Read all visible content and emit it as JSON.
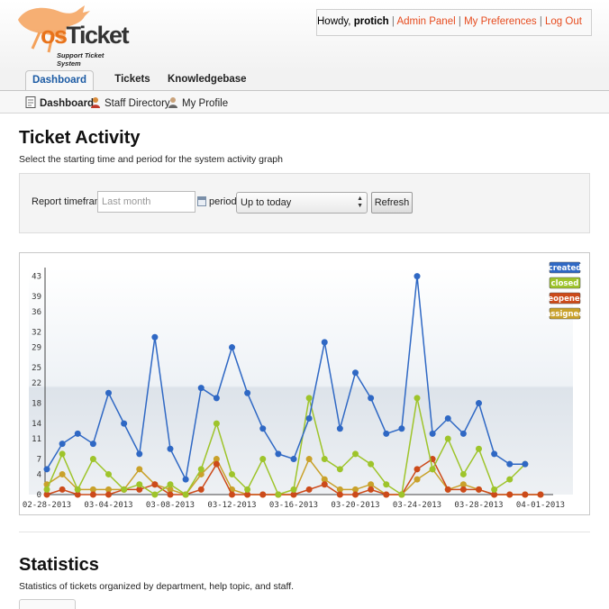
{
  "brand": {
    "logo_os": "os",
    "logo_ticket": "Ticket",
    "tagline": "Support Ticket System"
  },
  "user": {
    "greeting": "Howdy,",
    "name": "protich",
    "links": [
      "Admin Panel",
      "My Preferences",
      "Log Out"
    ],
    "separator": "|"
  },
  "nav": {
    "tabs": [
      "Dashboard",
      "Tickets",
      "Knowledgebase"
    ],
    "active": "Dashboard"
  },
  "subnav": {
    "items": [
      "Dashboard",
      "Staff Directory",
      "My Profile"
    ]
  },
  "page": {
    "title": "Ticket Activity",
    "description": "Select the starting time and period for the system activity graph"
  },
  "filter": {
    "timeframe_label": "Report timeframe:",
    "timeframe_placeholder": "Last month",
    "period_label": "period:",
    "period_value": "Up to today",
    "refresh_label": "Refresh"
  },
  "chart_data": {
    "type": "line",
    "x": [
      "02-28-2013",
      "03-01-2013",
      "03-02-2013",
      "03-03-2013",
      "03-04-2013",
      "03-05-2013",
      "03-06-2013",
      "03-07-2013",
      "03-08-2013",
      "03-09-2013",
      "03-10-2013",
      "03-11-2013",
      "03-12-2013",
      "03-13-2013",
      "03-14-2013",
      "03-15-2013",
      "03-16-2013",
      "03-17-2013",
      "03-18-2013",
      "03-19-2013",
      "03-20-2013",
      "03-21-2013",
      "03-22-2013",
      "03-23-2013",
      "03-24-2013",
      "03-25-2013",
      "03-26-2013",
      "03-27-2013",
      "03-28-2013",
      "03-29-2013",
      "03-30-2013",
      "03-31-2013",
      "04-01-2013"
    ],
    "xtick_labels": [
      "02-28-2013",
      "03-04-2013",
      "03-08-2013",
      "03-12-2013",
      "03-16-2013",
      "03-20-2013",
      "03-24-2013",
      "03-28-2013",
      "04-01-2013"
    ],
    "yticks": [
      0,
      4,
      7,
      11,
      14,
      18,
      22,
      25,
      29,
      32,
      36,
      39,
      43
    ],
    "ylim": [
      0,
      44
    ],
    "series": [
      {
        "name": "created",
        "color": "#2f68c4",
        "values": [
          5,
          10,
          12,
          10,
          20,
          14,
          8,
          31,
          9,
          3,
          21,
          19,
          29,
          20,
          13,
          8,
          7,
          15,
          30,
          13,
          24,
          19,
          12,
          13,
          43,
          12,
          15,
          12,
          18,
          8,
          6,
          6,
          null
        ]
      },
      {
        "name": "closed",
        "color": "#9ec42a",
        "values": [
          1,
          8,
          1,
          7,
          4,
          1,
          2,
          0,
          2,
          0,
          5,
          14,
          4,
          1,
          7,
          0,
          1,
          19,
          7,
          5,
          8,
          6,
          2,
          0,
          19,
          5,
          11,
          4,
          9,
          1,
          3,
          6,
          null
        ]
      },
      {
        "name": "reopened",
        "color": "#cc4a1a",
        "values": [
          0,
          1,
          0,
          0,
          0,
          1,
          1,
          2,
          0,
          0,
          1,
          6,
          0,
          0,
          0,
          0,
          0,
          1,
          2,
          0,
          0,
          1,
          0,
          0,
          5,
          7,
          1,
          1,
          1,
          0,
          0,
          0,
          0
        ]
      },
      {
        "name": "assigned",
        "color": "#c9a12a",
        "values": [
          2,
          4,
          1,
          1,
          1,
          1,
          5,
          2,
          1,
          0,
          4,
          7,
          1,
          0,
          0,
          0,
          0,
          7,
          3,
          1,
          1,
          2,
          0,
          0,
          3,
          5,
          1,
          2,
          1,
          0,
          0,
          0,
          0
        ]
      }
    ],
    "legend_position": "top-right",
    "grid": false
  },
  "stats": {
    "title": "Statistics",
    "description": "Statistics of tickets organized by department, help topic, and staff."
  },
  "colors": {
    "link": "#e64b1e",
    "accent": "#1c5ba4"
  }
}
